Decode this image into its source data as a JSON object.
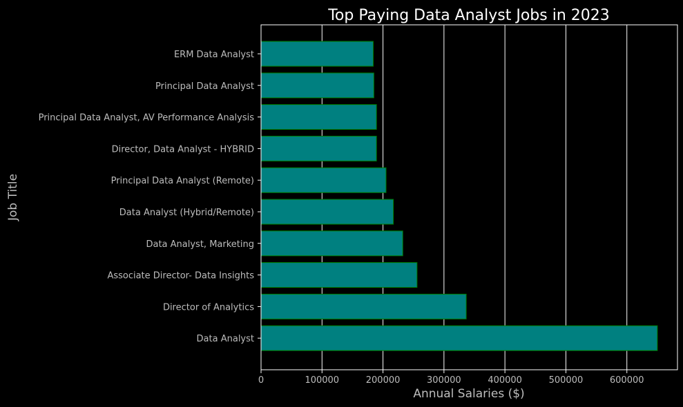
{
  "chart_data": {
    "type": "bar",
    "orientation": "horizontal",
    "title": "Top Paying Data Analyst Jobs in 2023",
    "xlabel": "Annual Salaries ($)",
    "ylabel": "Job Title",
    "categories": [
      "ERM Data Analyst",
      "Principal Data Analyst",
      "Principal Data Analyst, AV Performance Analysis",
      "Director, Data Analyst - HYBRID",
      "Principal Data Analyst (Remote)",
      "Data Analyst (Hybrid/Remote)",
      "Data Analyst, Marketing",
      "Associate Director- Data Insights",
      "Director of Analytics",
      "Data Analyst"
    ],
    "values": [
      184000,
      185000,
      189309,
      189309,
      205000,
      217000,
      232423,
      255829.5,
      336500,
      650000
    ],
    "xlim": [
      0,
      683000
    ],
    "xticks": [
      0,
      100000,
      200000,
      300000,
      400000,
      500000,
      600000
    ],
    "xtick_labels": [
      "0",
      "100000",
      "200000",
      "300000",
      "400000",
      "500000",
      "600000"
    ],
    "grid": "vertical",
    "colors": {
      "background": "#000000",
      "bar_fill": "#008080",
      "bar_edge": "#008000",
      "grid": "#ffffff",
      "axes": "#ffffff",
      "text": "#bdbdbd",
      "title": "#ffffff"
    }
  }
}
